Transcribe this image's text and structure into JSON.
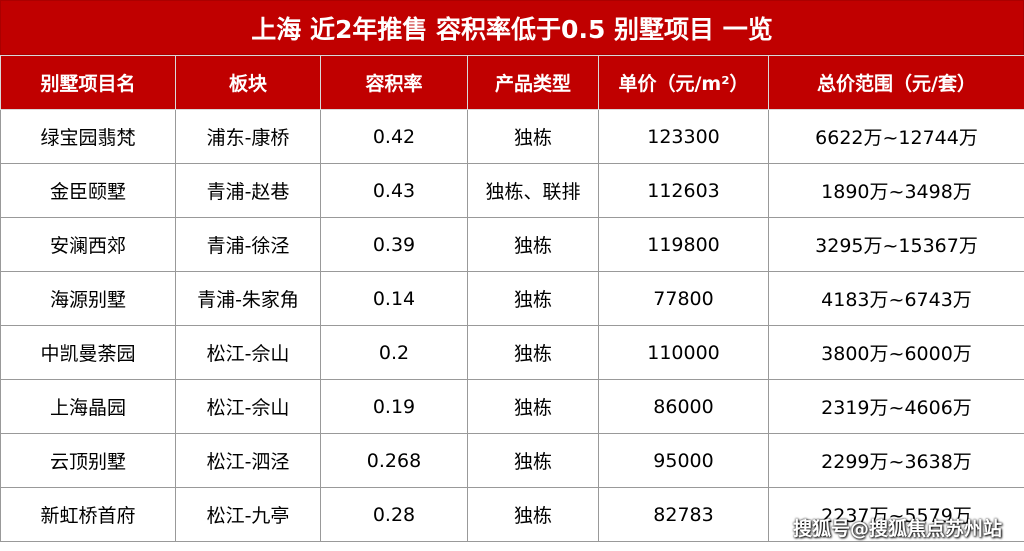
{
  "header": {
    "title": "上海 近2年推售 容积率低于0.5 别墅项目 一览"
  },
  "table": {
    "columns": [
      "别墅项目名",
      "板块",
      "容积率",
      "产品类型",
      "单价（元/m²）",
      "总价范围（元/套）"
    ],
    "rows": [
      [
        "绿宝园翡梵",
        "浦东-康桥",
        "0.42",
        "独栋",
        "123300",
        "6622万~12744万"
      ],
      [
        "金臣颐墅",
        "青浦-赵巷",
        "0.43",
        "独栋、联排",
        "112603",
        "1890万~3498万"
      ],
      [
        "安澜西郊",
        "青浦-徐泾",
        "0.39",
        "独栋",
        "119800",
        "3295万~15367万"
      ],
      [
        "海源别墅",
        "青浦-朱家角",
        "0.14",
        "独栋",
        "77800",
        "4183万~6743万"
      ],
      [
        "中凯曼荼园",
        "松江-佘山",
        "0.2",
        "独栋",
        "110000",
        "3800万~6000万"
      ],
      [
        "上海晶园",
        "松江-佘山",
        "0.19",
        "独栋",
        "86000",
        "2319万~4606万"
      ],
      [
        "云顶别墅",
        "松江-泗泾",
        "0.268",
        "独栋",
        "95000",
        "2299万~3638万"
      ],
      [
        "新虹桥首府",
        "松江-九亭",
        "0.28",
        "独栋",
        "82783",
        "2237万~5579万"
      ]
    ]
  },
  "watermark": "搜狐号@搜狐焦点苏州站"
}
